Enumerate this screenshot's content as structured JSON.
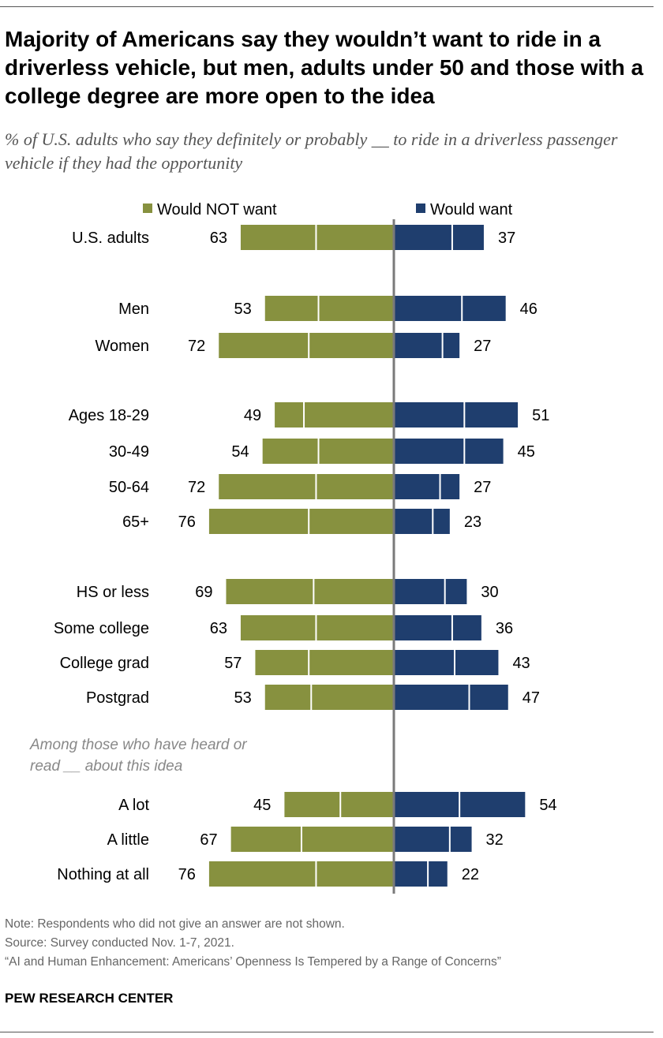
{
  "title": "Majority of Americans say they wouldn’t want to ride in a driverless vehicle, but men, adults under 50 and those with a college degree are more open to the idea",
  "subtitle": "% of U.S. adults who say they definitely or probably __ to ride in a driverless passenger vehicle if they had the opportunity",
  "colors": {
    "would_not_want": "#87913f",
    "would_want": "#1f3e6e",
    "center_line": "#7a7a7a"
  },
  "chart_data": {
    "type": "bar",
    "orientation": "horizontal-diverging-stacked",
    "legend": [
      {
        "name": "Would NOT want",
        "color": "#87913f"
      },
      {
        "name": "Would want",
        "color": "#1f3e6e"
      }
    ],
    "legend_placement": "top",
    "segment_note_estimated": "inner segment = probably, outer = definitely (values estimated)",
    "groups": [
      {
        "header": "",
        "rows": [
          {
            "label": "U.S. adults",
            "not_want": 63,
            "want": 37,
            "not_want_probably": 32,
            "want_probably": 24
          }
        ]
      },
      {
        "header": "",
        "rows": [
          {
            "label": "Men",
            "not_want": 53,
            "want": 46,
            "not_want_probably": 31,
            "want_probably": 28
          },
          {
            "label": "Women",
            "not_want": 72,
            "want": 27,
            "not_want_probably": 35,
            "want_probably": 20
          }
        ]
      },
      {
        "header": "",
        "rows": [
          {
            "label": "Ages 18-29",
            "not_want": 49,
            "want": 51,
            "not_want_probably": 37,
            "want_probably": 29
          },
          {
            "label": "30-49",
            "not_want": 54,
            "want": 45,
            "not_want_probably": 31,
            "want_probably": 29
          },
          {
            "label": "50-64",
            "not_want": 72,
            "want": 27,
            "not_want_probably": 32,
            "want_probably": 19
          },
          {
            "label": "65+",
            "not_want": 76,
            "want": 23,
            "not_want_probably": 35,
            "want_probably": 16
          }
        ]
      },
      {
        "header": "",
        "rows": [
          {
            "label": "HS or less",
            "not_want": 69,
            "want": 30,
            "not_want_probably": 33,
            "want_probably": 21
          },
          {
            "label": "Some college",
            "not_want": 63,
            "want": 36,
            "not_want_probably": 32,
            "want_probably": 24
          },
          {
            "label": "College grad",
            "not_want": 57,
            "want": 43,
            "not_want_probably": 35,
            "want_probably": 25
          },
          {
            "label": "Postgrad",
            "not_want": 53,
            "want": 47,
            "not_want_probably": 34,
            "want_probably": 31
          }
        ]
      },
      {
        "header": "Among those who have heard or read __ about this idea",
        "rows": [
          {
            "label": "A lot",
            "not_want": 45,
            "want": 54,
            "not_want_probably": 22,
            "want_probably": 27
          },
          {
            "label": "A little",
            "not_want": 67,
            "want": 32,
            "not_want_probably": 38,
            "want_probably": 23
          },
          {
            "label": "Nothing at all",
            "not_want": 76,
            "want": 22,
            "not_want_probably": 32,
            "want_probably": 14
          }
        ]
      }
    ]
  },
  "footer": {
    "note": "Note: Respondents who did not give an answer are not shown.",
    "source": "Source: Survey conducted Nov. 1-7, 2021.",
    "report": "“AI and Human Enhancement: Americans’ Openness Is Tempered by a Range of Concerns”",
    "org": "PEW RESEARCH CENTER"
  }
}
